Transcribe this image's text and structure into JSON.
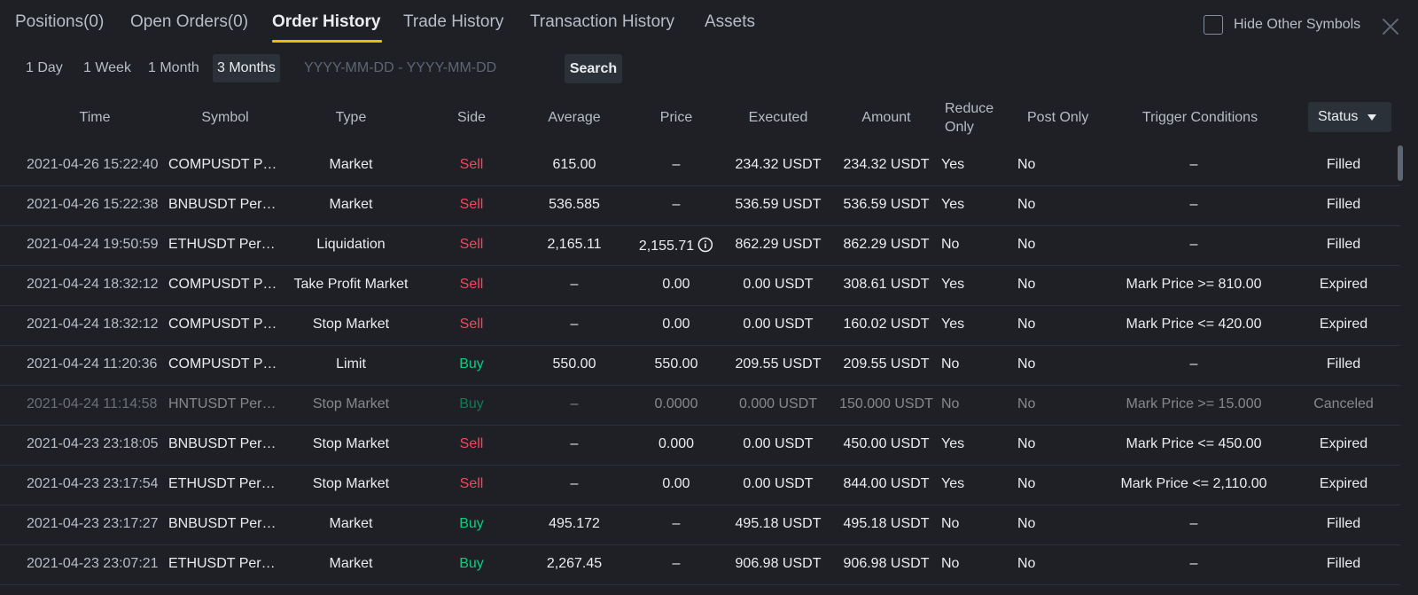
{
  "tabs": [
    {
      "label": "Positions(0)"
    },
    {
      "label": "Open Orders(0)"
    },
    {
      "label": "Order History"
    },
    {
      "label": "Trade History"
    },
    {
      "label": "Transaction History"
    },
    {
      "label": "Assets"
    }
  ],
  "active_tab": "Order History",
  "hide_other_symbols": {
    "label": "Hide Other Symbols",
    "checked": false
  },
  "close_icon": "close-icon",
  "ranges": [
    {
      "label": "1 Day"
    },
    {
      "label": "1 Week"
    },
    {
      "label": "1 Month"
    },
    {
      "label": "3 Months"
    }
  ],
  "active_range": "3 Months",
  "date_range": {
    "placeholder": "YYYY-MM-DD - YYYY-MM-DD",
    "value": ""
  },
  "search_label": "Search",
  "columns": {
    "time": "Time",
    "symbol": "Symbol",
    "type": "Type",
    "side": "Side",
    "average": "Average",
    "price": "Price",
    "executed": "Executed",
    "amount": "Amount",
    "reduce_only": "Reduce Only",
    "post_only": "Post Only",
    "trigger": "Trigger Conditions",
    "status": "Status"
  },
  "colors": {
    "sell": "#f6465d",
    "buy": "#0ecb81",
    "accent": "#f0b90b"
  },
  "rows": [
    {
      "time": "2021-04-26 15:22:40",
      "symbol": "COMPUSDT Perpetual",
      "type": "Market",
      "side": "Sell",
      "average": "615.00",
      "price": "–",
      "executed": "234.32 USDT",
      "amount": "234.32 USDT",
      "reduce_only": "Yes",
      "post_only": "No",
      "trigger": "–",
      "status": "Filled"
    },
    {
      "time": "2021-04-26 15:22:38",
      "symbol": "BNBUSDT Perpetual",
      "type": "Market",
      "side": "Sell",
      "average": "536.585",
      "price": "–",
      "executed": "536.59 USDT",
      "amount": "536.59 USDT",
      "reduce_only": "Yes",
      "post_only": "No",
      "trigger": "–",
      "status": "Filled"
    },
    {
      "time": "2021-04-24 19:50:59",
      "symbol": "ETHUSDT Perpetual",
      "type": "Liquidation",
      "side": "Sell",
      "average": "2,165.11",
      "price": "2,155.71",
      "price_info": true,
      "executed": "862.29 USDT",
      "amount": "862.29 USDT",
      "reduce_only": "No",
      "post_only": "No",
      "trigger": "–",
      "status": "Filled"
    },
    {
      "time": "2021-04-24 18:32:12",
      "symbol": "COMPUSDT Perpetual",
      "type": "Take Profit Market",
      "side": "Sell",
      "average": "–",
      "price": "0.00",
      "executed": "0.00 USDT",
      "amount": "308.61 USDT",
      "reduce_only": "Yes",
      "post_only": "No",
      "trigger": "Mark Price >= 810.00",
      "status": "Expired"
    },
    {
      "time": "2021-04-24 18:32:12",
      "symbol": "COMPUSDT Perpetual",
      "type": "Stop Market",
      "side": "Sell",
      "average": "–",
      "price": "0.00",
      "executed": "0.00 USDT",
      "amount": "160.02 USDT",
      "reduce_only": "Yes",
      "post_only": "No",
      "trigger": "Mark Price <= 420.00",
      "status": "Expired"
    },
    {
      "time": "2021-04-24 11:20:36",
      "symbol": "COMPUSDT Perpetual",
      "type": "Limit",
      "side": "Buy",
      "average": "550.00",
      "price": "550.00",
      "executed": "209.55 USDT",
      "amount": "209.55 USDT",
      "reduce_only": "No",
      "post_only": "No",
      "trigger": "–",
      "status": "Filled"
    },
    {
      "time": "2021-04-24 11:14:58",
      "symbol": "HNTUSDT Perpetual",
      "type": "Stop Market",
      "side": "Buy",
      "average": "–",
      "price": "0.0000",
      "executed": "0.000 USDT",
      "amount": "150.000 USDT",
      "reduce_only": "No",
      "post_only": "No",
      "trigger": "Mark Price >= 15.000",
      "status": "Canceled",
      "dimmed": true
    },
    {
      "time": "2021-04-23 23:18:05",
      "symbol": "BNBUSDT Perpetual",
      "type": "Stop Market",
      "side": "Sell",
      "average": "–",
      "price": "0.000",
      "executed": "0.00 USDT",
      "amount": "450.00 USDT",
      "reduce_only": "Yes",
      "post_only": "No",
      "trigger": "Mark Price <= 450.00",
      "status": "Expired"
    },
    {
      "time": "2021-04-23 23:17:54",
      "symbol": "ETHUSDT Perpetual",
      "type": "Stop Market",
      "side": "Sell",
      "average": "–",
      "price": "0.00",
      "executed": "0.00 USDT",
      "amount": "844.00 USDT",
      "reduce_only": "Yes",
      "post_only": "No",
      "trigger": "Mark Price <= 2,110.00",
      "status": "Expired"
    },
    {
      "time": "2021-04-23 23:17:27",
      "symbol": "BNBUSDT Perpetual",
      "type": "Market",
      "side": "Buy",
      "average": "495.172",
      "price": "–",
      "executed": "495.18 USDT",
      "amount": "495.18 USDT",
      "reduce_only": "No",
      "post_only": "No",
      "trigger": "–",
      "status": "Filled"
    },
    {
      "time": "2021-04-23 23:07:21",
      "symbol": "ETHUSDT Perpetual",
      "type": "Market",
      "side": "Buy",
      "average": "2,267.45",
      "price": "–",
      "executed": "906.98 USDT",
      "amount": "906.98 USDT",
      "reduce_only": "No",
      "post_only": "No",
      "trigger": "–",
      "status": "Filled"
    }
  ]
}
